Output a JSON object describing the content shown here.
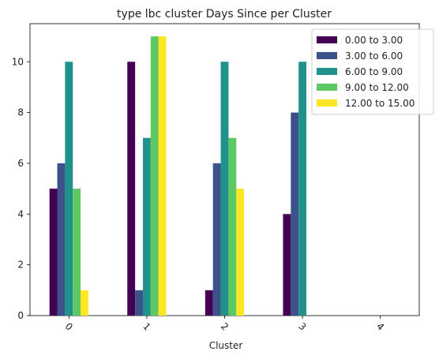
{
  "chart_data": {
    "type": "bar",
    "title": "type lbc cluster Days Since per Cluster",
    "xlabel": "Cluster",
    "ylabel": "",
    "categories": [
      "0",
      "1",
      "2",
      "3",
      "4"
    ],
    "yticks": [
      "0",
      "2",
      "4",
      "6",
      "8",
      "10"
    ],
    "ylim": [
      0,
      11.5
    ],
    "grid": false,
    "legend_position": "top-right",
    "series": [
      {
        "name": "0.00 to 3.00",
        "color": "#440154",
        "values": [
          5,
          10,
          1,
          4,
          0
        ]
      },
      {
        "name": "3.00 to 6.00",
        "color": "#3b528b",
        "values": [
          6,
          1,
          6,
          8,
          0
        ]
      },
      {
        "name": "6.00 to 9.00",
        "color": "#21918c",
        "values": [
          10,
          7,
          10,
          10,
          0
        ]
      },
      {
        "name": "9.00 to 12.00",
        "color": "#5ec962",
        "values": [
          5,
          11,
          7,
          0,
          0
        ]
      },
      {
        "name": "12.00 to 15.00",
        "color": "#fde725",
        "values": [
          1,
          11,
          5,
          0,
          0
        ]
      }
    ]
  }
}
